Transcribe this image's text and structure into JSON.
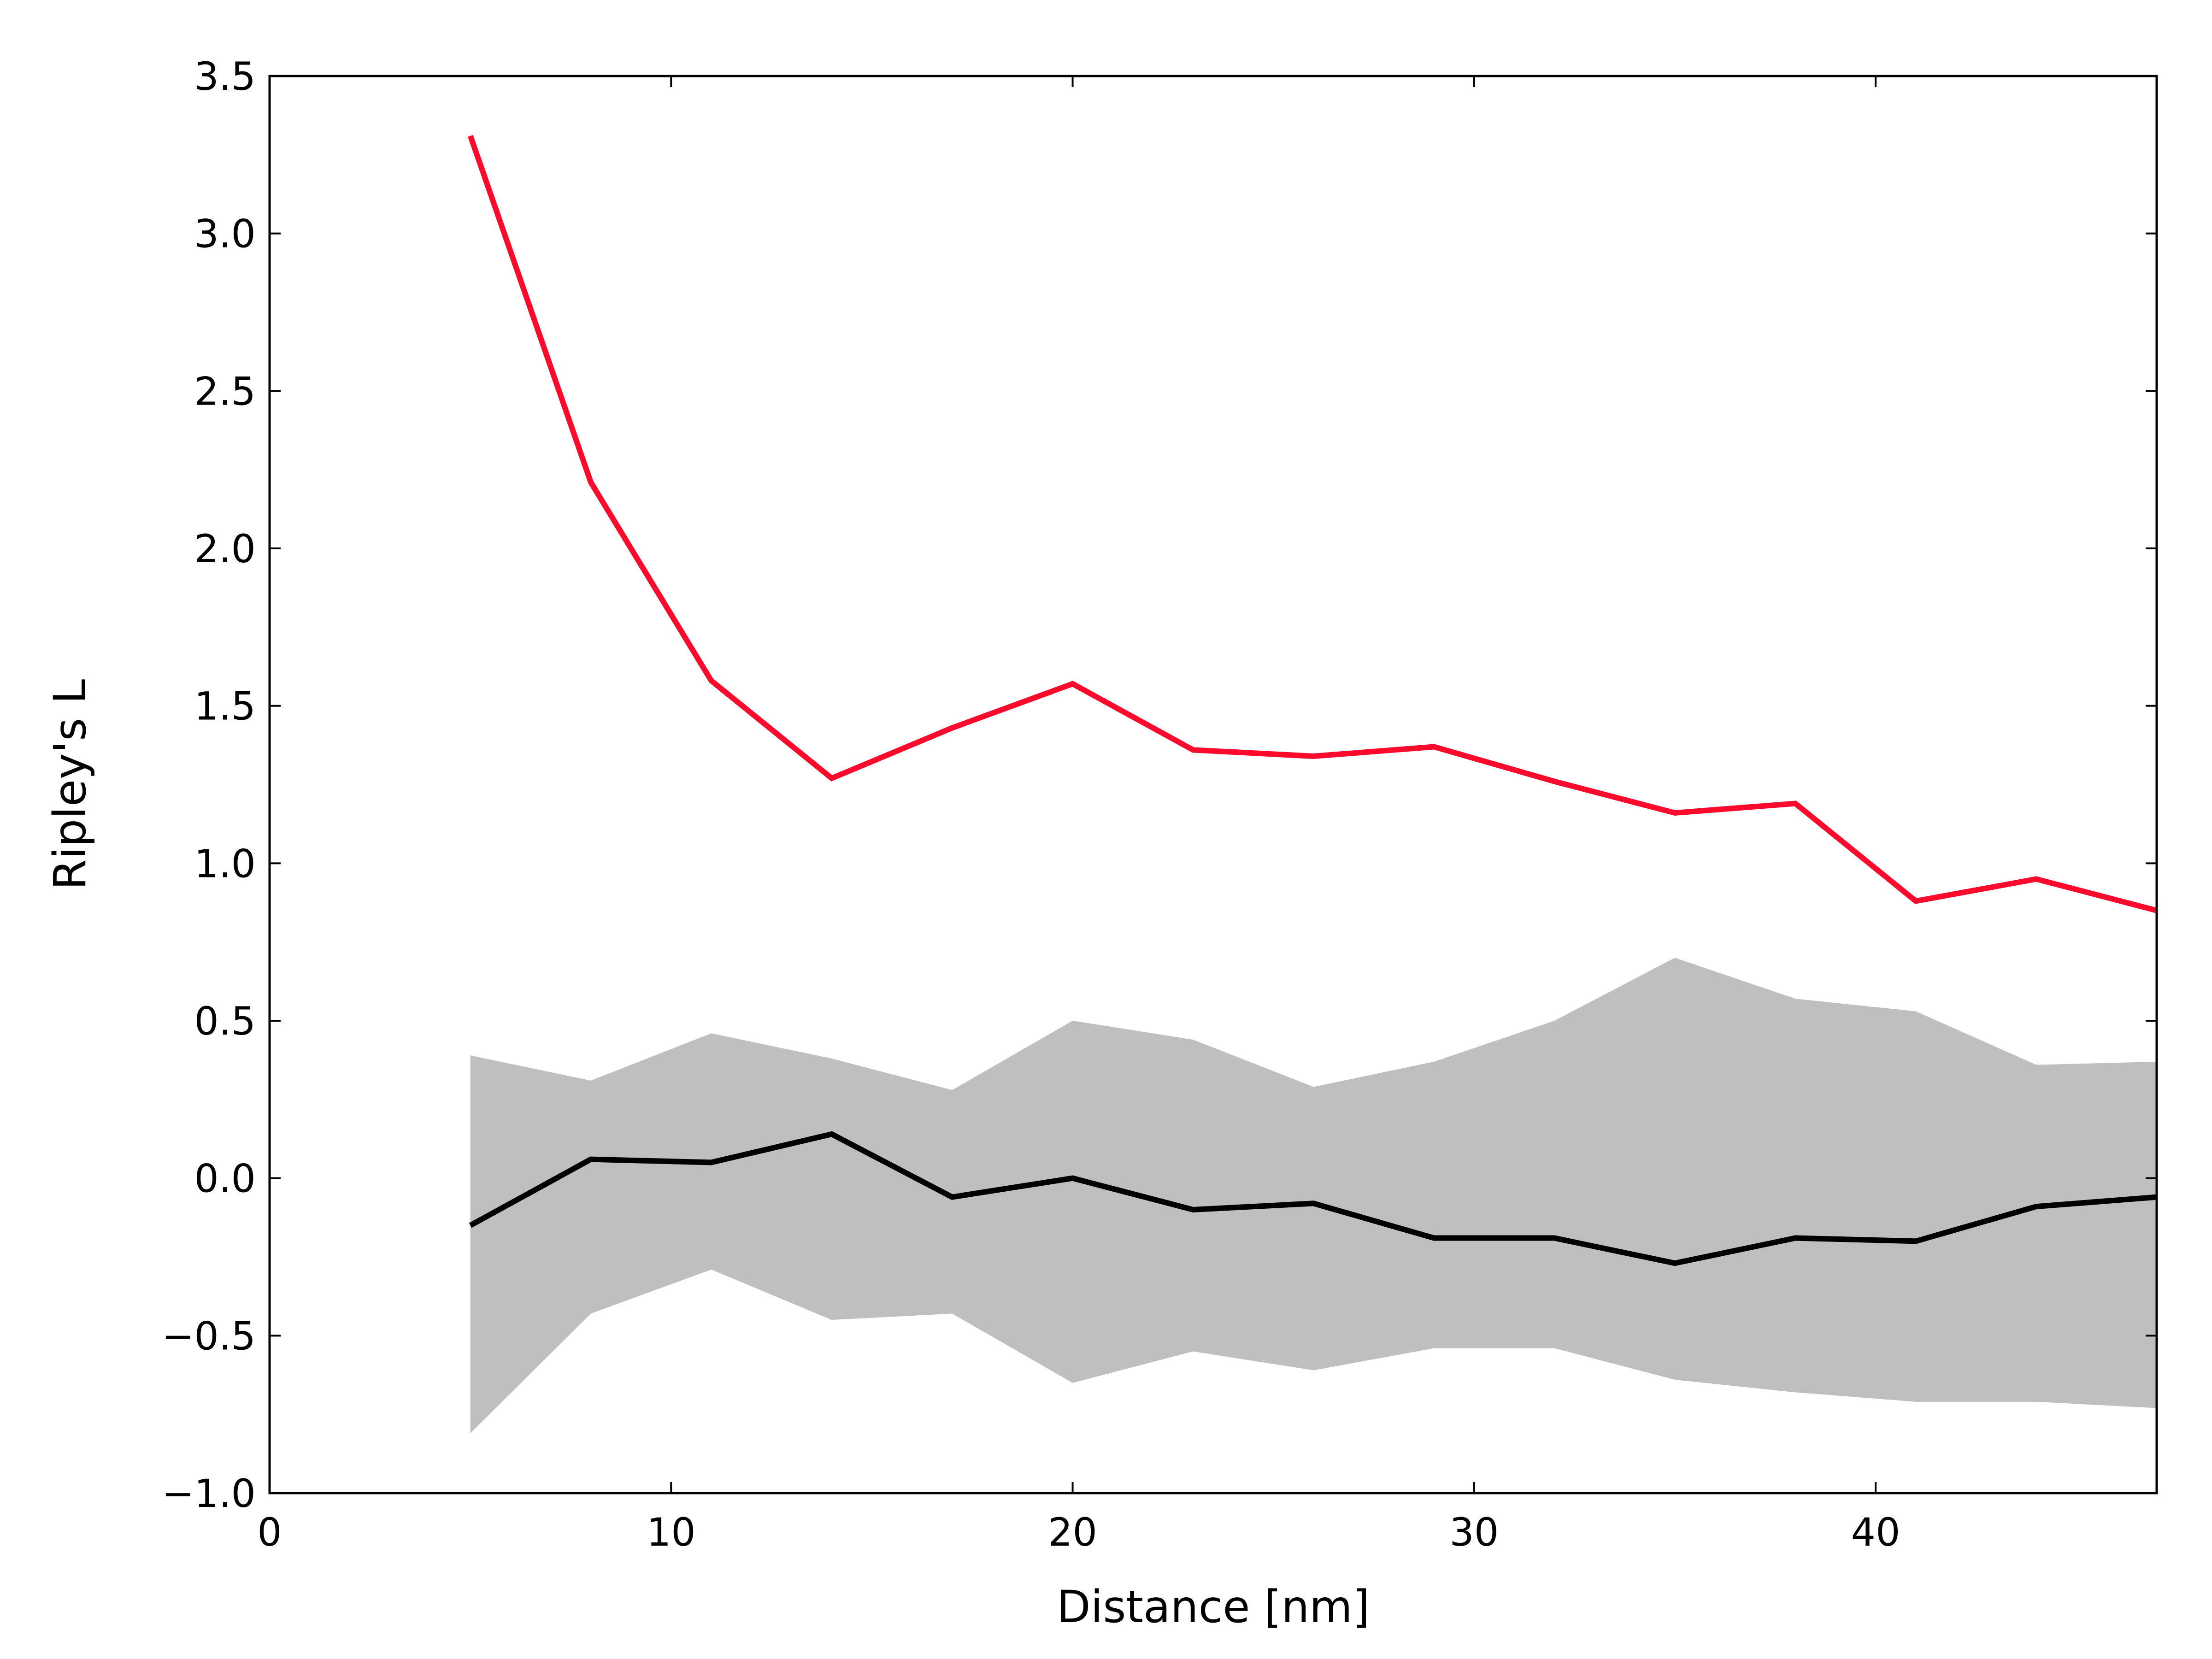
{
  "chart_data": {
    "type": "line",
    "title": "",
    "xlabel": "Distance [nm]",
    "ylabel": "Ripley's L",
    "xlim": [
      0,
      47
    ],
    "ylim": [
      -1.0,
      3.5
    ],
    "grid": false,
    "xticks": [
      0,
      10,
      20,
      30,
      40
    ],
    "xtick_labels": [
      "0",
      "10",
      "20",
      "30",
      "40"
    ],
    "yticks": [
      -1.0,
      -0.5,
      0.0,
      0.5,
      1.0,
      1.5,
      2.0,
      2.5,
      3.0,
      3.5
    ],
    "ytick_labels": [
      "−1.0",
      "−0.5",
      "0.0",
      "0.5",
      "1.0",
      "1.5",
      "2.0",
      "2.5",
      "3.0",
      "3.5"
    ],
    "x": [
      5,
      8,
      11,
      14,
      17,
      20,
      23,
      26,
      29,
      32,
      35,
      38,
      41,
      44,
      47
    ],
    "band": {
      "color": "#bfbfbf",
      "upper": [
        0.39,
        0.31,
        0.46,
        0.38,
        0.28,
        0.5,
        0.44,
        0.29,
        0.37,
        0.5,
        0.7,
        0.57,
        0.53,
        0.36,
        0.37
      ],
      "lower": [
        -0.81,
        -0.43,
        -0.29,
        -0.45,
        -0.43,
        -0.65,
        -0.55,
        -0.61,
        -0.54,
        -0.54,
        -0.64,
        -0.68,
        -0.71,
        -0.71,
        -0.73
      ]
    },
    "series": [
      {
        "color": "#ff0a2d",
        "values": [
          3.31,
          2.21,
          1.58,
          1.27,
          1.43,
          1.57,
          1.36,
          1.34,
          1.37,
          1.26,
          1.16,
          1.19,
          0.88,
          0.95,
          0.85
        ]
      },
      {
        "color": "#000000",
        "values": [
          -0.15,
          0.06,
          0.05,
          0.14,
          -0.06,
          0.0,
          -0.1,
          -0.08,
          -0.19,
          -0.19,
          -0.27,
          -0.19,
          -0.2,
          -0.09,
          -0.06
        ]
      }
    ]
  }
}
